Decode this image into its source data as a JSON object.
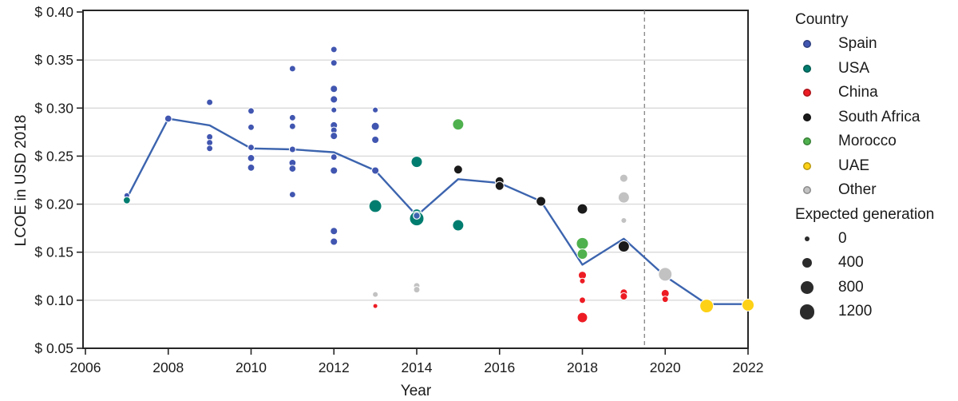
{
  "colors": {
    "trend_line": "#3c64ae",
    "reference_line": "#8c8c8c",
    "grid": "#d9d9d9",
    "axis": "#262626",
    "country_colors": {
      "Spain": "#4156b0",
      "USA": "#007d6f",
      "China": "#ed1c24",
      "South Africa": "#1a1a1a",
      "Morocco": "#4fb14e",
      "UAE": "#fdd116",
      "Other": "#c2c2c2"
    }
  },
  "legend": {
    "country_title": "Country",
    "countries": [
      {
        "label": "Spain",
        "color": "#4156b0"
      },
      {
        "label": "USA",
        "color": "#007d6f"
      },
      {
        "label": "China",
        "color": "#ed1c24"
      },
      {
        "label": "South Africa",
        "color": "#1a1a1a"
      },
      {
        "label": "Morocco",
        "color": "#4fb14e"
      },
      {
        "label": "UAE",
        "color": "#fdd116"
      },
      {
        "label": "Other",
        "color": "#c2c2c2"
      }
    ],
    "size_title": "Expected generation",
    "sizes": [
      {
        "label": "0",
        "gen": 0
      },
      {
        "label": "400",
        "gen": 400
      },
      {
        "label": "800",
        "gen": 800
      },
      {
        "label": "1200",
        "gen": 1200
      }
    ]
  },
  "chart_data": {
    "type": "scatter",
    "title": "",
    "xlabel": "Year",
    "ylabel": "LCOE in USD 2018",
    "xlim": [
      2006,
      2022
    ],
    "ylim": [
      0.05,
      0.4
    ],
    "grid": true,
    "legend_position": "right",
    "x_ticks": [
      {
        "label": "2006",
        "value": 2006
      },
      {
        "label": "2008",
        "value": 2008
      },
      {
        "label": "2010",
        "value": 2010
      },
      {
        "label": "2012",
        "value": 2012
      },
      {
        "label": "2014",
        "value": 2014
      },
      {
        "label": "2016",
        "value": 2016
      },
      {
        "label": "2018",
        "value": 2018
      },
      {
        "label": "2020",
        "value": 2020
      },
      {
        "label": "2022",
        "value": 2022
      }
    ],
    "y_ticks": [
      {
        "label": "$ 0.40",
        "value": 0.4
      },
      {
        "label": "$ 0.35",
        "value": 0.35
      },
      {
        "label": "$ 0.30",
        "value": 0.3
      },
      {
        "label": "$ 0.25",
        "value": 0.25
      },
      {
        "label": "$ 0.20",
        "value": 0.2
      },
      {
        "label": "$ 0.15",
        "value": 0.15
      },
      {
        "label": "$ 0.10",
        "value": 0.1
      },
      {
        "label": "$ 0.05",
        "value": 0.05
      }
    ],
    "reference_line_x": 2019.5,
    "trend_line": {
      "name": "mean LCOE trend",
      "x": [
        2007,
        2008,
        2009,
        2010,
        2011,
        2012,
        2013,
        2014,
        2015,
        2016,
        2017,
        2018,
        2019,
        2020,
        2021,
        2022
      ],
      "y": [
        0.206,
        0.289,
        0.282,
        0.258,
        0.257,
        0.254,
        0.235,
        0.188,
        0.226,
        0.222,
        0.203,
        0.137,
        0.164,
        0.125,
        0.096,
        0.096
      ],
      "vertex_markers": [
        {
          "year": 2014,
          "value": 0.188
        }
      ]
    },
    "points_format": [
      "year",
      "lcoe_usd_2018",
      "country",
      "expected_generation"
    ],
    "points": [
      [
        2007,
        0.209,
        "Spain",
        50
      ],
      [
        2007,
        0.204,
        "USA",
        150
      ],
      [
        2008,
        0.289,
        "Spain",
        150
      ],
      [
        2009,
        0.306,
        "Spain",
        100
      ],
      [
        2009,
        0.27,
        "Spain",
        100
      ],
      [
        2009,
        0.264,
        "Spain",
        100
      ],
      [
        2009,
        0.258,
        "Spain",
        100
      ],
      [
        2010,
        0.297,
        "Spain",
        100
      ],
      [
        2010,
        0.28,
        "Spain",
        100
      ],
      [
        2010,
        0.259,
        "Spain",
        100
      ],
      [
        2010,
        0.248,
        "Spain",
        150
      ],
      [
        2010,
        0.238,
        "Spain",
        150
      ],
      [
        2011,
        0.341,
        "Spain",
        100
      ],
      [
        2011,
        0.29,
        "Spain",
        100
      ],
      [
        2011,
        0.281,
        "Spain",
        100
      ],
      [
        2011,
        0.257,
        "Spain",
        100
      ],
      [
        2011,
        0.243,
        "Spain",
        150
      ],
      [
        2011,
        0.237,
        "Spain",
        150
      ],
      [
        2011,
        0.21,
        "Spain",
        100
      ],
      [
        2012,
        0.361,
        "Spain",
        100
      ],
      [
        2012,
        0.347,
        "Spain",
        100
      ],
      [
        2012,
        0.32,
        "Spain",
        170
      ],
      [
        2012,
        0.309,
        "Spain",
        170
      ],
      [
        2012,
        0.298,
        "Spain",
        50
      ],
      [
        2012,
        0.282,
        "Spain",
        170
      ],
      [
        2012,
        0.277,
        "Spain",
        100
      ],
      [
        2012,
        0.271,
        "Spain",
        170
      ],
      [
        2012,
        0.249,
        "Spain",
        100
      ],
      [
        2012,
        0.235,
        "Spain",
        170
      ],
      [
        2012,
        0.172,
        "Spain",
        170
      ],
      [
        2012,
        0.161,
        "Spain",
        170
      ],
      [
        2013,
        0.298,
        "Spain",
        50
      ],
      [
        2013,
        0.281,
        "Spain",
        240
      ],
      [
        2013,
        0.267,
        "Spain",
        170
      ],
      [
        2013,
        0.235,
        "Spain",
        170
      ],
      [
        2013,
        0.198,
        "USA",
        800
      ],
      [
        2013,
        0.106,
        "Other",
        50
      ],
      [
        2013,
        0.094,
        "China",
        0
      ],
      [
        2014,
        0.244,
        "USA",
        590
      ],
      [
        2014,
        0.19,
        "USA",
        400
      ],
      [
        2014,
        0.185,
        "USA",
        1060
      ],
      [
        2014,
        0.115,
        "Other",
        100
      ],
      [
        2014,
        0.111,
        "Other",
        100
      ],
      [
        2015,
        0.283,
        "Morocco",
        590
      ],
      [
        2015,
        0.236,
        "South Africa",
        310
      ],
      [
        2015,
        0.178,
        "USA",
        590
      ],
      [
        2016,
        0.224,
        "South Africa",
        310
      ],
      [
        2016,
        0.219,
        "South Africa",
        310
      ],
      [
        2017,
        0.203,
        "South Africa",
        400
      ],
      [
        2018,
        0.195,
        "South Africa",
        480
      ],
      [
        2018,
        0.159,
        "Morocco",
        710
      ],
      [
        2018,
        0.148,
        "Morocco",
        480
      ],
      [
        2018,
        0.126,
        "China",
        240
      ],
      [
        2018,
        0.12,
        "China",
        50
      ],
      [
        2018,
        0.1,
        "China",
        100
      ],
      [
        2018,
        0.082,
        "China",
        480
      ],
      [
        2019,
        0.227,
        "Other",
        240
      ],
      [
        2019,
        0.207,
        "Other",
        590
      ],
      [
        2019,
        0.183,
        "Other",
        50
      ],
      [
        2019,
        0.156,
        "South Africa",
        590
      ],
      [
        2019,
        0.108,
        "China",
        170
      ],
      [
        2019,
        0.104,
        "China",
        170
      ],
      [
        2020,
        0.127,
        "Other",
        930
      ],
      [
        2020,
        0.107,
        "China",
        240
      ],
      [
        2020,
        0.101,
        "China",
        100
      ],
      [
        2021,
        0.094,
        "UAE",
        930
      ],
      [
        2022,
        0.095,
        "UAE",
        710
      ]
    ]
  }
}
